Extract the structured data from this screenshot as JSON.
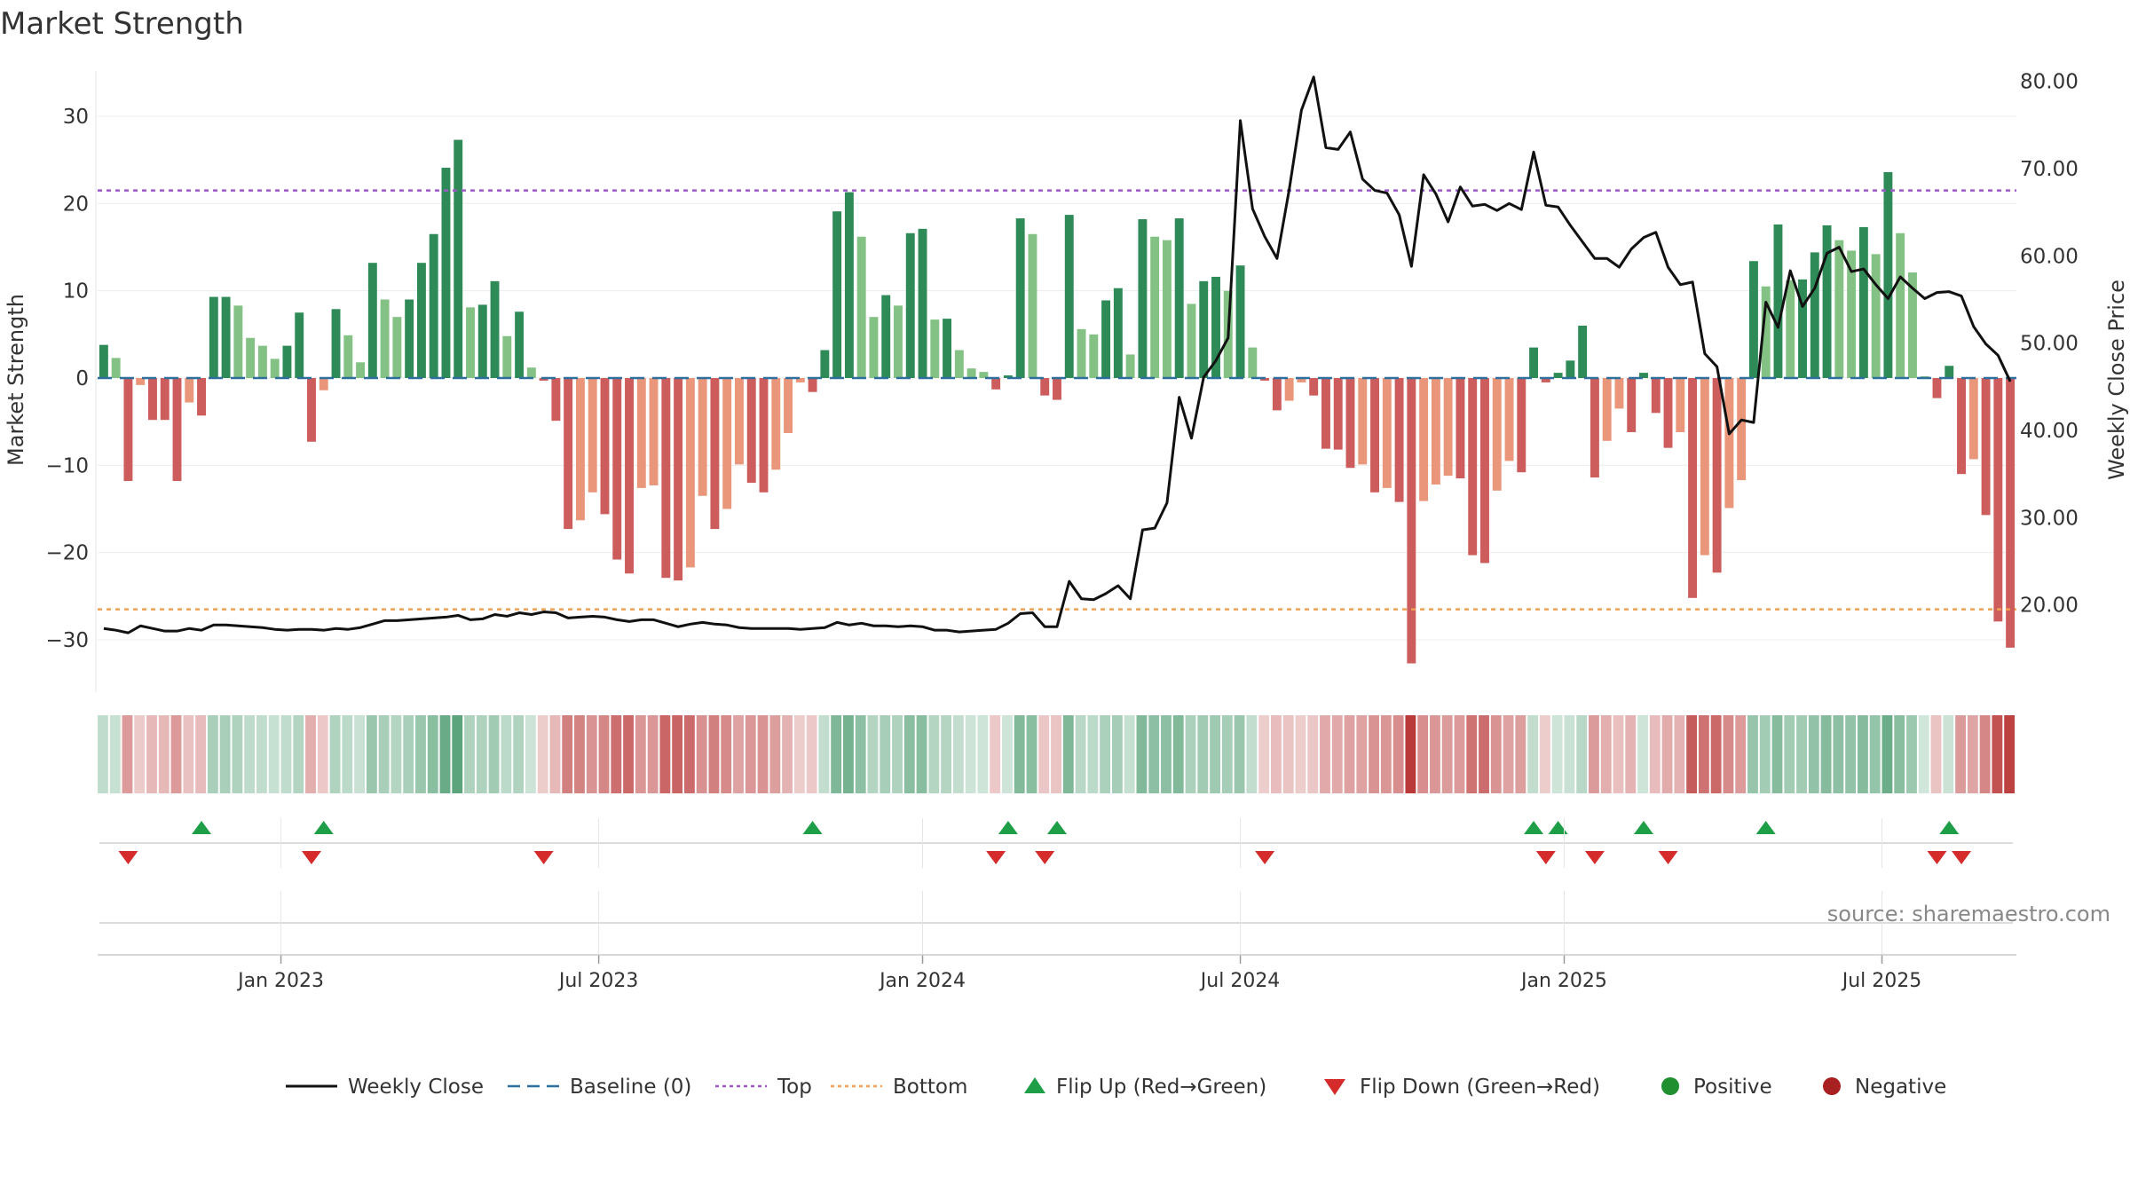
{
  "chart_data": {
    "type": "bar",
    "title": "Market Strength",
    "ylabel": "Market Strength",
    "y2label": "Weekly Close Price",
    "source": "source: sharemaestro.com",
    "ylim": [
      -36,
      36
    ],
    "y2lim": [
      10,
      82
    ],
    "yticks": [
      {
        "v": 30,
        "label": "30"
      },
      {
        "v": 20,
        "label": "20"
      },
      {
        "v": 10,
        "label": "10"
      },
      {
        "v": 0,
        "label": "0"
      },
      {
        "v": -10,
        "label": "−10"
      },
      {
        "v": -20,
        "label": "−20"
      },
      {
        "v": -30,
        "label": "−30"
      }
    ],
    "y2ticks": [
      {
        "v": 80,
        "label": "80.00"
      },
      {
        "v": 70,
        "label": "70.00"
      },
      {
        "v": 60,
        "label": "60.00"
      },
      {
        "v": 50,
        "label": "50.00"
      },
      {
        "v": 40,
        "label": "40.00"
      },
      {
        "v": 30,
        "label": "30.00"
      },
      {
        "v": 20,
        "label": "20.00"
      }
    ],
    "xticks": [
      {
        "i": 15,
        "label": "Jan 2023"
      },
      {
        "i": 41,
        "label": "Jul 2023"
      },
      {
        "i": 67.5,
        "label": "Jan 2024"
      },
      {
        "i": 93.5,
        "label": "Jul 2024"
      },
      {
        "i": 120,
        "label": "Jan 2025"
      },
      {
        "i": 146,
        "label": "Jul 2025"
      }
    ],
    "top_line": 21.5,
    "bottom_line": -26.5,
    "baseline": 0,
    "strength": [
      3.8,
      2.3,
      -11.8,
      -0.8,
      -4.8,
      -4.8,
      -11.8,
      -2.8,
      -4.3,
      9.3,
      9.3,
      8.3,
      4.6,
      3.7,
      2.2,
      3.7,
      7.5,
      -7.3,
      -1.4,
      7.9,
      4.9,
      1.8,
      13.2,
      9.0,
      7.0,
      9.0,
      13.2,
      16.5,
      24.1,
      27.3,
      8.1,
      8.4,
      11.1,
      4.8,
      7.6,
      1.2,
      -0.3,
      -4.9,
      -17.3,
      -16.3,
      -13.1,
      -15.6,
      -20.8,
      -22.4,
      -12.6,
      -12.3,
      -22.9,
      -23.2,
      -21.7,
      -13.5,
      -17.3,
      -15.0,
      -9.9,
      -12.0,
      -13.1,
      -10.5,
      -6.3,
      -0.5,
      -1.6,
      3.2,
      19.1,
      21.3,
      16.2,
      7.0,
      9.5,
      8.3,
      16.6,
      17.1,
      6.7,
      6.8,
      3.2,
      1.1,
      0.7,
      -1.3,
      0.3,
      18.3,
      16.5,
      -2.0,
      -2.5,
      18.7,
      5.6,
      5.0,
      8.9,
      10.3,
      2.7,
      18.2,
      16.2,
      15.8,
      18.3,
      8.5,
      11.1,
      11.6,
      10.0,
      12.9,
      3.5,
      -0.3,
      -3.7,
      -2.6,
      -0.5,
      -2.0,
      -8.1,
      -8.2,
      -10.3,
      -9.9,
      -13.1,
      -12.6,
      -14.2,
      -32.7,
      -14.1,
      -12.2,
      -11.2,
      -11.5,
      -20.3,
      -21.2,
      -12.9,
      -9.5,
      -10.8,
      3.5,
      -0.5,
      0.6,
      2.0,
      6.0,
      -11.4,
      -7.2,
      -3.5,
      -6.2,
      0.6,
      -4.0,
      -8.0,
      -6.2,
      -25.2,
      -20.3,
      -22.3,
      -14.9,
      -11.7,
      13.4,
      10.5,
      17.6,
      11.2,
      11.3,
      14.4,
      17.5,
      15.8,
      14.6,
      17.3,
      14.2,
      23.6,
      16.6,
      12.1,
      0.2,
      -2.3,
      1.4,
      -11.0,
      -9.3,
      -15.7,
      -27.9,
      -30.9
    ],
    "weekly_close": [
      17.3,
      17.1,
      16.8,
      17.6,
      17.3,
      17.0,
      17.0,
      17.3,
      17.1,
      17.7,
      17.7,
      17.6,
      17.5,
      17.4,
      17.2,
      17.1,
      17.2,
      17.2,
      17.1,
      17.3,
      17.2,
      17.4,
      17.8,
      18.2,
      18.2,
      18.3,
      18.4,
      18.5,
      18.6,
      18.8,
      18.3,
      18.4,
      18.9,
      18.7,
      19.1,
      18.9,
      19.2,
      19.1,
      18.5,
      18.6,
      18.7,
      18.6,
      18.3,
      18.1,
      18.3,
      18.3,
      17.9,
      17.5,
      17.8,
      18.0,
      17.8,
      17.7,
      17.4,
      17.3,
      17.3,
      17.3,
      17.3,
      17.2,
      17.3,
      17.4,
      18.0,
      17.7,
      17.9,
      17.6,
      17.6,
      17.5,
      17.6,
      17.5,
      17.1,
      17.1,
      16.9,
      17.0,
      17.1,
      17.2,
      17.9,
      19.0,
      19.1,
      17.5,
      17.5,
      22.7,
      20.7,
      20.6,
      21.3,
      22.2,
      20.7,
      28.6,
      28.8,
      31.7,
      43.8,
      39.1,
      46.1,
      48.0,
      50.6,
      75.5,
      65.4,
      62.2,
      59.7,
      67.6,
      76.7,
      80.5,
      72.4,
      72.2,
      74.2,
      68.8,
      67.5,
      67.2,
      64.7,
      58.8,
      69.3,
      67.1,
      63.9,
      67.9,
      65.7,
      65.9,
      65.2,
      66.0,
      65.3,
      71.9,
      65.8,
      65.6,
      63.5,
      61.6,
      59.7,
      59.7,
      58.7,
      60.8,
      62.1,
      62.7,
      58.7,
      56.7,
      57.0,
      48.8,
      47.3,
      39.6,
      41.2,
      40.9,
      54.7,
      51.8,
      58.3,
      54.2,
      56.3,
      60.3,
      61.0,
      58.2,
      58.5,
      56.7,
      55.1,
      57.6,
      56.3,
      55.1,
      55.8,
      55.9,
      55.4,
      51.9,
      49.9,
      48.6,
      45.6
    ],
    "flip_up": [
      8,
      18,
      58,
      74,
      78,
      117,
      119,
      126,
      136,
      151
    ],
    "flip_down": [
      2,
      17,
      36,
      73,
      77,
      95,
      118,
      122,
      128,
      150,
      152
    ],
    "legend": [
      {
        "name": "Weekly Close",
        "kind": "line",
        "color": "#111111"
      },
      {
        "name": "Baseline (0)",
        "kind": "dash",
        "color": "#2e6f9e"
      },
      {
        "name": "Top",
        "kind": "dot",
        "color": "#9b59c9"
      },
      {
        "name": "Bottom",
        "kind": "dot",
        "color": "#f0a050"
      },
      {
        "name": "Flip Up (Red→Green)",
        "kind": "tri-up",
        "color": "#1e9e46"
      },
      {
        "name": "Flip Down (Green→Red)",
        "kind": "tri-down",
        "color": "#d62b2b"
      },
      {
        "name": "Positive",
        "kind": "circle",
        "color": "#1f8f2f"
      },
      {
        "name": "Negative",
        "kind": "circle",
        "color": "#a82020"
      }
    ],
    "colors": {
      "pos_strong": "#2e8b57",
      "pos_light": "#84c184",
      "neg_strong": "#cd5c5c",
      "neg_light": "#e9967a",
      "top": "#9b59c9",
      "bottom": "#f0a050",
      "baseline": "#2e6f9e",
      "price": "#111111"
    }
  }
}
